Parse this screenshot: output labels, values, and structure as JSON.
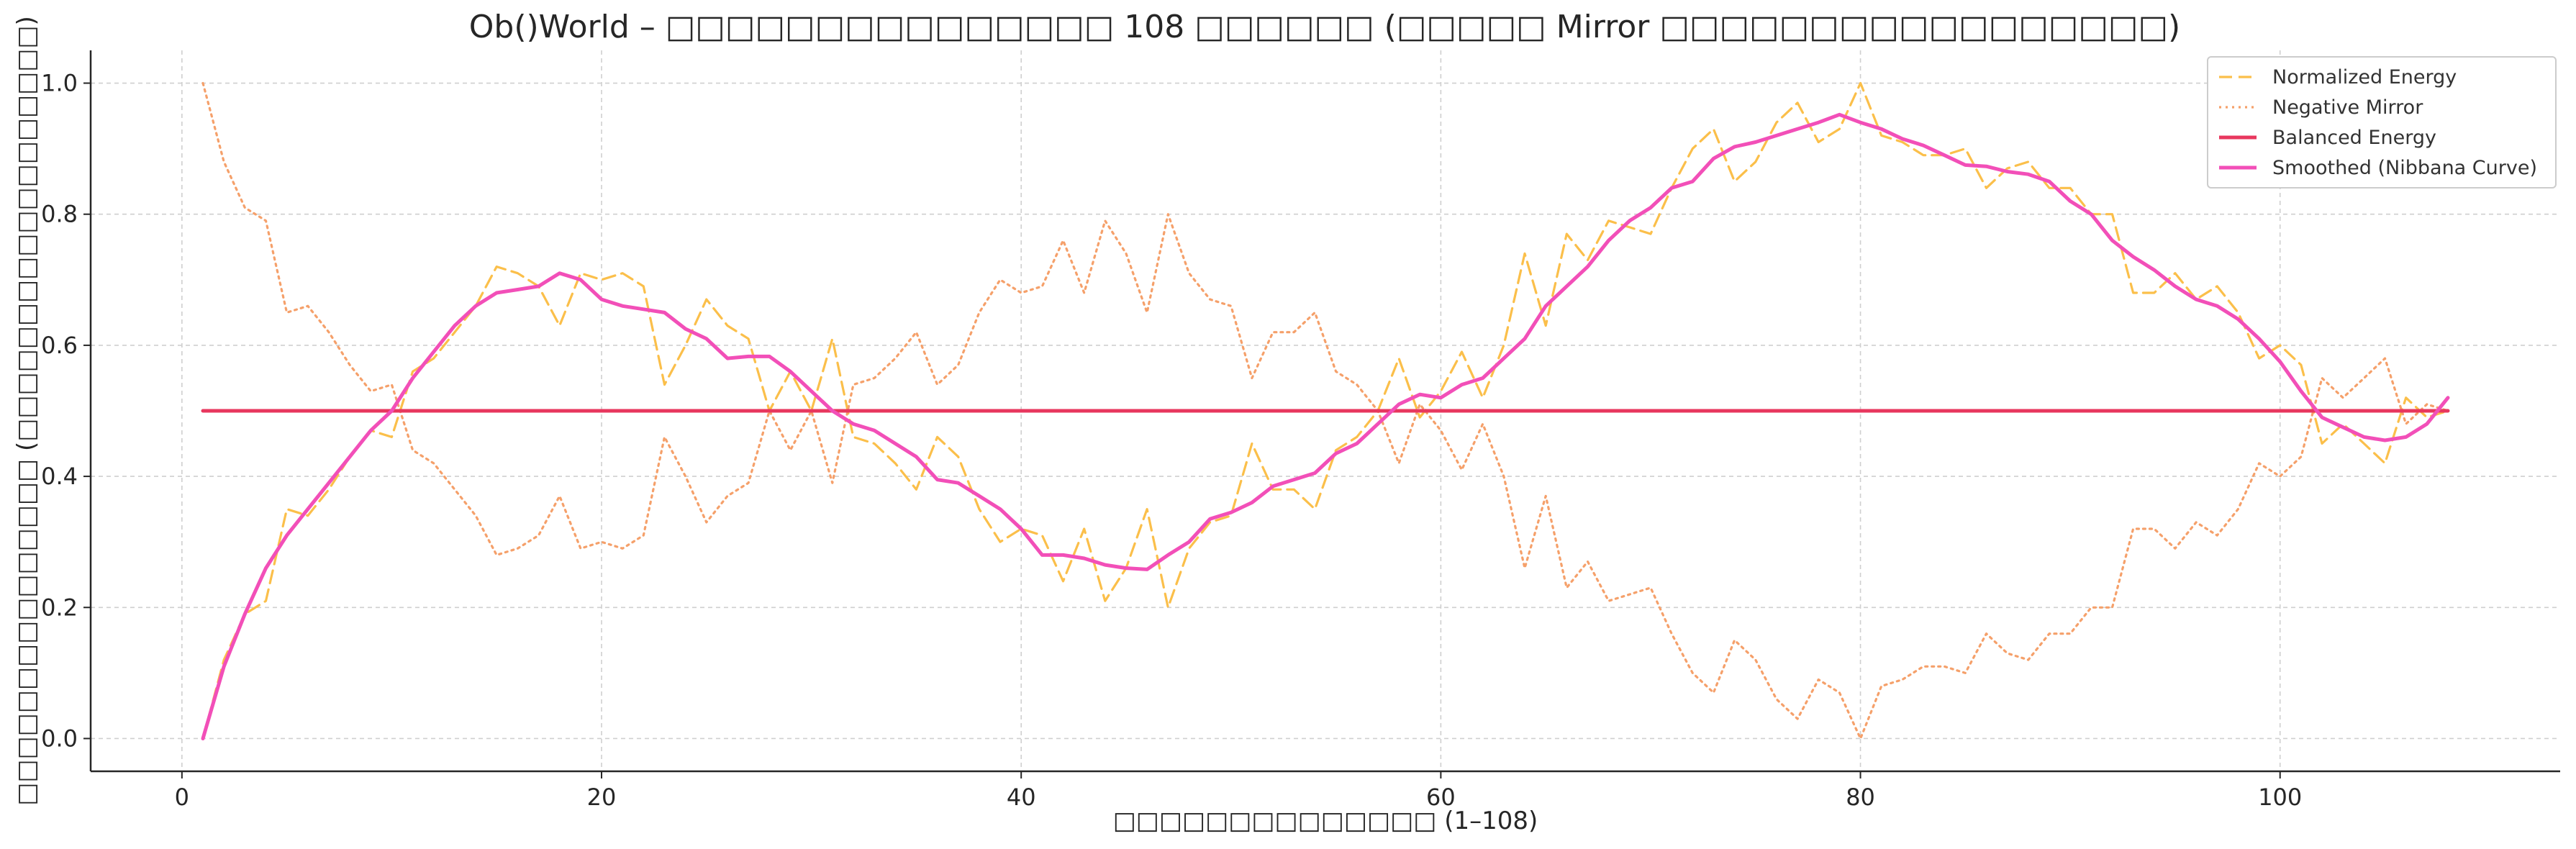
{
  "chart_data": {
    "type": "line",
    "title": "Ob()World – □□□□□□□□□□□□□□□ 108 □□□□□□ (□□□□□ Mirror □□□□□□□□□□□□□□□□□)",
    "xlabel": "□□□□□□□□□□□□□□ (1–108)",
    "ylabel": "□□□□□□□□□□□□□□□ (□□□□□□□□□□□□□□□□□□)",
    "xlim": [
      -4.35,
      113.35
    ],
    "ylim": [
      -0.05,
      1.05
    ],
    "x_ticks": [
      0,
      20,
      40,
      60,
      80,
      100
    ],
    "y_ticks": [
      0.0,
      0.2,
      0.4,
      0.6,
      0.8,
      1.0
    ],
    "x_tick_labels": [
      "0",
      "20",
      "40",
      "60",
      "80",
      "100"
    ],
    "y_tick_labels": [
      "0.0",
      "0.2",
      "0.4",
      "0.6",
      "0.8",
      "1.0"
    ],
    "grid": true,
    "legend_position": "top-right",
    "x_start": 1,
    "series": [
      {
        "name": "Normalized Energy",
        "color": "#fbbf4a",
        "style": "dashed",
        "values": [
          0.0,
          0.12,
          0.19,
          0.21,
          0.35,
          0.34,
          0.38,
          0.43,
          0.47,
          0.46,
          0.56,
          0.58,
          0.62,
          0.66,
          0.72,
          0.71,
          0.69,
          0.63,
          0.71,
          0.7,
          0.71,
          0.69,
          0.54,
          0.6,
          0.67,
          0.63,
          0.61,
          0.5,
          0.56,
          0.5,
          0.61,
          0.46,
          0.45,
          0.42,
          0.38,
          0.46,
          0.43,
          0.35,
          0.3,
          0.32,
          0.31,
          0.24,
          0.32,
          0.21,
          0.26,
          0.35,
          0.2,
          0.29,
          0.33,
          0.34,
          0.45,
          0.38,
          0.38,
          0.35,
          0.44,
          0.46,
          0.5,
          0.58,
          0.49,
          0.53,
          0.59,
          0.52,
          0.6,
          0.74,
          0.63,
          0.77,
          0.73,
          0.79,
          0.78,
          0.77,
          0.84,
          0.9,
          0.93,
          0.85,
          0.88,
          0.94,
          0.97,
          0.91,
          0.93,
          1.0,
          0.92,
          0.91,
          0.89,
          0.89,
          0.9,
          0.84,
          0.87,
          0.88,
          0.84,
          0.84,
          0.8,
          0.8,
          0.68,
          0.68,
          0.71,
          0.67,
          0.69,
          0.65,
          0.58,
          0.6,
          0.57,
          0.45,
          0.48,
          0.45,
          0.42,
          0.52,
          0.49,
          0.5
        ]
      },
      {
        "name": "Negative Mirror",
        "color": "#f5a06a",
        "style": "dotted",
        "values": [
          1.0,
          0.88,
          0.81,
          0.79,
          0.65,
          0.66,
          0.62,
          0.57,
          0.53,
          0.54,
          0.44,
          0.42,
          0.38,
          0.34,
          0.28,
          0.29,
          0.31,
          0.37,
          0.29,
          0.3,
          0.29,
          0.31,
          0.46,
          0.4,
          0.33,
          0.37,
          0.39,
          0.5,
          0.44,
          0.5,
          0.39,
          0.54,
          0.55,
          0.58,
          0.62,
          0.54,
          0.57,
          0.65,
          0.7,
          0.68,
          0.69,
          0.76,
          0.68,
          0.79,
          0.74,
          0.65,
          0.8,
          0.71,
          0.67,
          0.66,
          0.55,
          0.62,
          0.62,
          0.65,
          0.56,
          0.54,
          0.5,
          0.42,
          0.51,
          0.47,
          0.41,
          0.48,
          0.4,
          0.26,
          0.37,
          0.23,
          0.27,
          0.21,
          0.22,
          0.23,
          0.16,
          0.1,
          0.07,
          0.15,
          0.12,
          0.06,
          0.03,
          0.09,
          0.07,
          0.0,
          0.08,
          0.09,
          0.11,
          0.11,
          0.1,
          0.16,
          0.13,
          0.12,
          0.16,
          0.16,
          0.2,
          0.2,
          0.32,
          0.32,
          0.29,
          0.33,
          0.31,
          0.35,
          0.42,
          0.4,
          0.43,
          0.55,
          0.52,
          0.55,
          0.58,
          0.48,
          0.51,
          0.5
        ]
      },
      {
        "name": "Balanced Energy",
        "color": "#e8375e",
        "style": "solid",
        "values": [
          0.5,
          0.5,
          0.5,
          0.5,
          0.5,
          0.5,
          0.5,
          0.5,
          0.5,
          0.5,
          0.5,
          0.5,
          0.5,
          0.5,
          0.5,
          0.5,
          0.5,
          0.5,
          0.5,
          0.5,
          0.5,
          0.5,
          0.5,
          0.5,
          0.5,
          0.5,
          0.5,
          0.5,
          0.5,
          0.5,
          0.5,
          0.5,
          0.5,
          0.5,
          0.5,
          0.5,
          0.5,
          0.5,
          0.5,
          0.5,
          0.5,
          0.5,
          0.5,
          0.5,
          0.5,
          0.5,
          0.5,
          0.5,
          0.5,
          0.5,
          0.5,
          0.5,
          0.5,
          0.5,
          0.5,
          0.5,
          0.5,
          0.5,
          0.5,
          0.5,
          0.5,
          0.5,
          0.5,
          0.5,
          0.5,
          0.5,
          0.5,
          0.5,
          0.5,
          0.5,
          0.5,
          0.5,
          0.5,
          0.5,
          0.5,
          0.5,
          0.5,
          0.5,
          0.5,
          0.5,
          0.5,
          0.5,
          0.5,
          0.5,
          0.5,
          0.5,
          0.5,
          0.5,
          0.5,
          0.5,
          0.5,
          0.5,
          0.5,
          0.5,
          0.5,
          0.5,
          0.5,
          0.5,
          0.5,
          0.5,
          0.5,
          0.5,
          0.5,
          0.5,
          0.5,
          0.5,
          0.5,
          0.5
        ]
      },
      {
        "name": "Smoothed (Nibbana Curve)",
        "color": "#f24fb8",
        "style": "solid",
        "values": [
          0.0,
          0.11,
          0.19,
          0.26,
          0.31,
          0.35,
          0.39,
          0.43,
          0.47,
          0.5,
          0.55,
          0.59,
          0.63,
          0.66,
          0.68,
          0.685,
          0.69,
          0.71,
          0.7,
          0.67,
          0.66,
          0.655,
          0.65,
          0.625,
          0.61,
          0.58,
          0.583,
          0.583,
          0.56,
          0.53,
          0.5,
          0.48,
          0.47,
          0.45,
          0.43,
          0.395,
          0.39,
          0.37,
          0.35,
          0.32,
          0.28,
          0.28,
          0.275,
          0.265,
          0.26,
          0.258,
          0.28,
          0.3,
          0.335,
          0.345,
          0.36,
          0.385,
          0.395,
          0.405,
          0.435,
          0.45,
          0.48,
          0.51,
          0.525,
          0.52,
          0.54,
          0.55,
          0.58,
          0.61,
          0.66,
          0.69,
          0.72,
          0.76,
          0.79,
          0.81,
          0.84,
          0.85,
          0.885,
          0.903,
          0.91,
          0.92,
          0.93,
          0.94,
          0.952,
          0.94,
          0.93,
          0.915,
          0.905,
          0.89,
          0.875,
          0.873,
          0.865,
          0.861,
          0.85,
          0.82,
          0.8,
          0.76,
          0.735,
          0.715,
          0.69,
          0.67,
          0.66,
          0.64,
          0.61,
          0.575,
          0.53,
          0.49,
          0.475,
          0.46,
          0.455,
          0.46,
          0.48,
          0.52
        ]
      }
    ]
  }
}
